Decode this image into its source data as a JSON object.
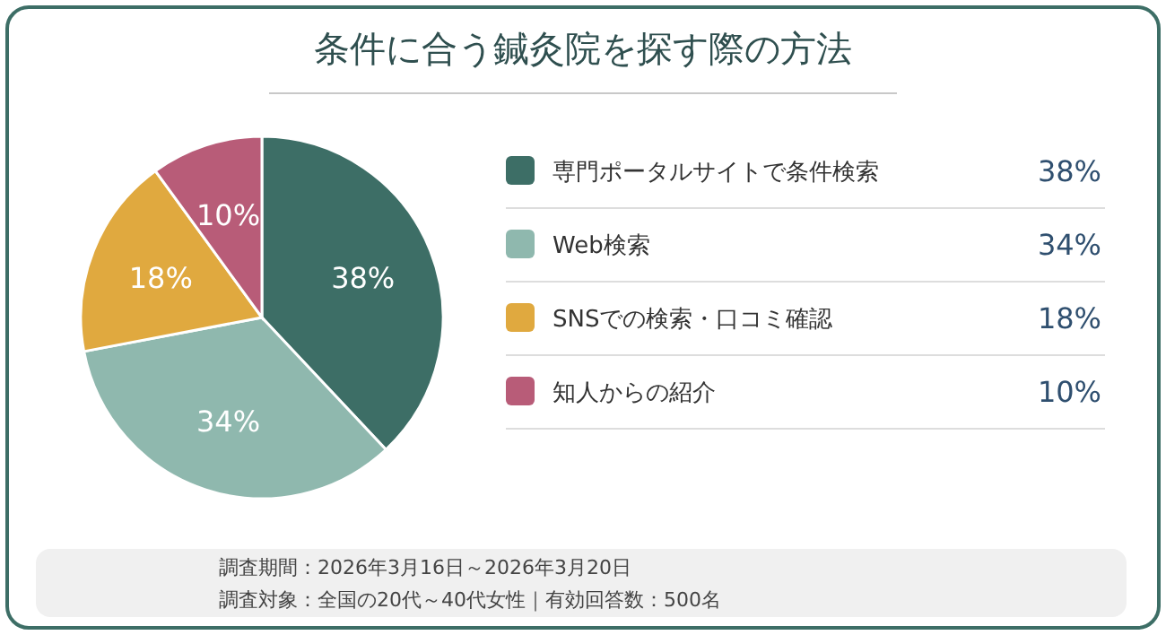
{
  "chart_data": {
    "type": "pie",
    "title": "条件に合う鍼灸院を探す際の方法",
    "categories": [
      "専門ポータルサイトで条件検索",
      "Web検索",
      "SNSでの検索・口コミ確認",
      "知人からの紹介"
    ],
    "values": [
      38,
      34,
      18,
      10
    ],
    "colors": [
      "#3d6e66",
      "#8fb8ae",
      "#e0a93f",
      "#b85c78"
    ],
    "value_labels": [
      "38%",
      "34%",
      "18%",
      "10%"
    ],
    "legend": "right",
    "annotations": [
      "調査期間：2026年3月16日～2026年3月20日",
      "調査対象：全国の20代～40代女性｜有効回答数：500名"
    ]
  }
}
